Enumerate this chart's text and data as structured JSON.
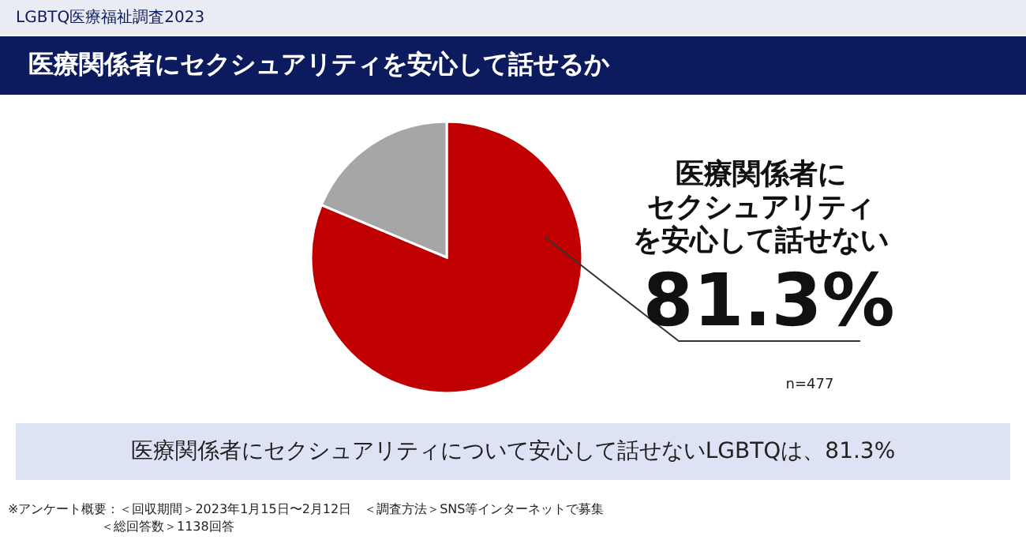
{
  "chart_data": {
    "type": "pie",
    "subtitle": "LGBTQ医療福祉調査2023",
    "title": "医療関係者にセクシュアリティを安心して話せるか",
    "categories": [
      "医療関係者にセクシュアリティを安心して話せない",
      null
    ],
    "values": [
      81.3,
      18.7
    ],
    "colors": [
      "#c00000",
      "#a6a6a6"
    ],
    "value_labels": [
      "81.3%",
      null
    ],
    "annotations": [
      "n=477",
      "医療関係者にセクシュアリティについて安心して話せないLGBTQは、81.3%",
      "※アンケート概要：＜回収期間＞2023年1月15日〜2月12日　＜調査方法＞SNS等インターネットで募集",
      "＜総回答数＞1138回答"
    ]
  }
}
